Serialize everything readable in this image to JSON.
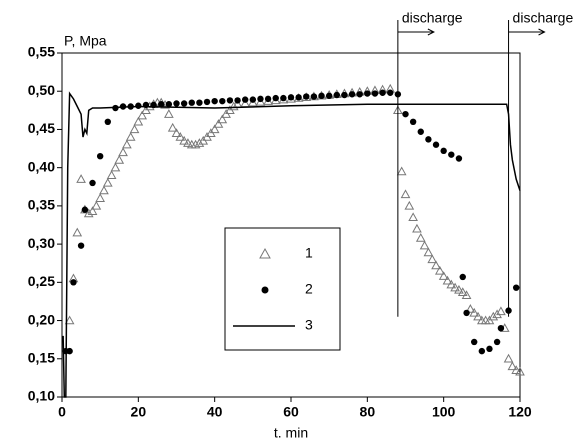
{
  "chart_data": {
    "type": "scatter",
    "ylabel": "P, Mpa",
    "xlabel": "t. min",
    "xlim": [
      0,
      120
    ],
    "xticks": [
      0,
      20,
      40,
      60,
      80,
      100,
      120
    ],
    "ylim": [
      0.1,
      0.55
    ],
    "yticks": [
      {
        "value": 0.1,
        "label": "0,10"
      },
      {
        "value": 0.15,
        "label": "0,15"
      },
      {
        "value": 0.2,
        "label": "0,20"
      },
      {
        "value": 0.25,
        "label": "0,25"
      },
      {
        "value": 0.3,
        "label": "0,30"
      },
      {
        "value": 0.35,
        "label": "0,35"
      },
      {
        "value": 0.4,
        "label": "0,40"
      },
      {
        "value": 0.45,
        "label": "0,45"
      },
      {
        "value": 0.5,
        "label": "0,50"
      },
      {
        "value": 0.55,
        "label": "0,55"
      }
    ],
    "legend": "center",
    "annotations": [
      {
        "text": "discharge",
        "x": 88
      },
      {
        "text": "discharge",
        "x": 117
      }
    ],
    "series": [
      {
        "name": "1",
        "marker": "triangle",
        "color": "#777777",
        "x": [
          2,
          3,
          4,
          5,
          6,
          7,
          8,
          9,
          10,
          11,
          12,
          13,
          14,
          15,
          16,
          17,
          18,
          19,
          20,
          21,
          22,
          23,
          24,
          25,
          26,
          27,
          28,
          29,
          30,
          31,
          32,
          33,
          34,
          35,
          36,
          37,
          38,
          39,
          40,
          41,
          42,
          43,
          44,
          45,
          46,
          48,
          50,
          52,
          54,
          56,
          58,
          60,
          62,
          64,
          66,
          68,
          70,
          72,
          74,
          76,
          78,
          80,
          82,
          84,
          86,
          88,
          89,
          90,
          91,
          92,
          93,
          94,
          95,
          96,
          97,
          98,
          99,
          100,
          101,
          102,
          103,
          104,
          105,
          106,
          107,
          108,
          109,
          110,
          111,
          112,
          113,
          114,
          115,
          116,
          117,
          118,
          119,
          120
        ],
        "values": [
          0.2,
          0.255,
          0.315,
          0.385,
          0.345,
          0.34,
          0.343,
          0.35,
          0.36,
          0.37,
          0.38,
          0.39,
          0.4,
          0.41,
          0.42,
          0.43,
          0.44,
          0.45,
          0.46,
          0.468,
          0.475,
          0.48,
          0.483,
          0.485,
          0.485,
          0.482,
          0.47,
          0.452,
          0.445,
          0.44,
          0.435,
          0.432,
          0.43,
          0.43,
          0.432,
          0.435,
          0.44,
          0.445,
          0.45,
          0.457,
          0.463,
          0.47,
          0.475,
          0.48,
          0.483,
          0.484,
          0.485,
          0.486,
          0.487,
          0.488,
          0.489,
          0.49,
          0.491,
          0.492,
          0.493,
          0.494,
          0.495,
          0.496,
          0.497,
          0.498,
          0.499,
          0.5,
          0.501,
          0.502,
          0.503,
          0.475,
          0.395,
          0.365,
          0.35,
          0.335,
          0.32,
          0.308,
          0.298,
          0.289,
          0.28,
          0.272,
          0.265,
          0.258,
          0.252,
          0.247,
          0.243,
          0.24,
          0.237,
          0.233,
          0.215,
          0.21,
          0.205,
          0.2,
          0.2,
          0.2,
          0.205,
          0.208,
          0.212,
          0.19,
          0.15,
          0.14,
          0.135,
          0.133
        ]
      },
      {
        "name": "2",
        "marker": "dot",
        "color": "#000000",
        "x": [
          1,
          2,
          3,
          5,
          6,
          8,
          10,
          12,
          14,
          16,
          18,
          20,
          22,
          24,
          26,
          28,
          30,
          32,
          34,
          36,
          38,
          40,
          42,
          44,
          46,
          48,
          50,
          52,
          54,
          56,
          58,
          60,
          62,
          64,
          66,
          68,
          70,
          72,
          74,
          76,
          78,
          80,
          82,
          84,
          86,
          88,
          90,
          92,
          94,
          96,
          98,
          100,
          102,
          104,
          105,
          106,
          108,
          110,
          112,
          114,
          115,
          117,
          119
        ],
        "values": [
          0.16,
          0.16,
          0.25,
          0.298,
          0.345,
          0.38,
          0.415,
          0.46,
          0.478,
          0.48,
          0.48,
          0.481,
          0.482,
          0.482,
          0.483,
          0.483,
          0.484,
          0.484,
          0.485,
          0.485,
          0.486,
          0.487,
          0.487,
          0.488,
          0.488,
          0.489,
          0.489,
          0.49,
          0.49,
          0.491,
          0.491,
          0.492,
          0.492,
          0.493,
          0.493,
          0.494,
          0.494,
          0.495,
          0.495,
          0.496,
          0.496,
          0.497,
          0.497,
          0.498,
          0.498,
          0.496,
          0.47,
          0.46,
          0.447,
          0.437,
          0.43,
          0.422,
          0.417,
          0.412,
          0.257,
          0.21,
          0.172,
          0.16,
          0.163,
          0.172,
          0.19,
          0.213,
          0.243
        ]
      },
      {
        "name": "3",
        "marker": "line",
        "color": "#000000",
        "x": [
          0.3,
          0.6,
          1,
          1.5,
          2,
          3,
          4,
          5,
          5.5,
          6,
          6.5,
          7,
          8,
          10,
          20,
          40,
          60,
          80,
          100,
          116.5,
          117,
          117.5,
          118,
          119,
          120
        ],
        "values": [
          0.18,
          0.1,
          0.1,
          0.4,
          0.497,
          0.49,
          0.48,
          0.47,
          0.44,
          0.45,
          0.445,
          0.475,
          0.478,
          0.478,
          0.48,
          0.478,
          0.481,
          0.483,
          0.483,
          0.483,
          0.47,
          0.43,
          0.41,
          0.385,
          0.37
        ]
      }
    ]
  }
}
